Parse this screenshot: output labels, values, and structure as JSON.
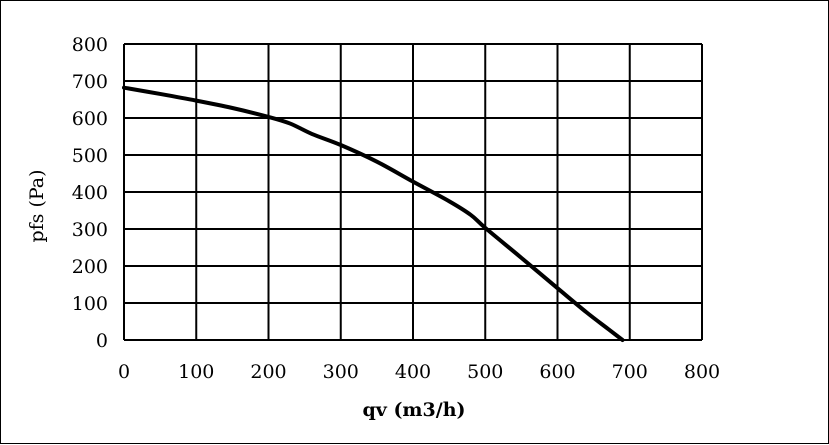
{
  "chart_data": {
    "type": "line",
    "title": "",
    "xlabel": "qv (m3/h)",
    "ylabel": "pfs (Pa)",
    "xlim": [
      0,
      800
    ],
    "ylim": [
      0,
      800
    ],
    "x_ticks": [
      0,
      100,
      200,
      300,
      400,
      500,
      600,
      700,
      800
    ],
    "y_ticks": [
      0,
      100,
      200,
      300,
      400,
      500,
      600,
      700,
      800
    ],
    "x_tick_labels": [
      "0",
      "100",
      "200",
      "300",
      "400",
      "500",
      "600",
      "700",
      "800"
    ],
    "y_tick_labels": [
      "0",
      "100",
      "200",
      "300",
      "400",
      "500",
      "600",
      "700",
      "800"
    ],
    "grid": true,
    "legend": "none",
    "series": [
      {
        "color": "#000000",
        "x": [
          0,
          50,
          100,
          150,
          200,
          230,
          260,
          300,
          350,
          400,
          450,
          480,
          500,
          550,
          600,
          640,
          670,
          690
        ],
        "y": [
          682,
          665,
          647,
          627,
          603,
          585,
          557,
          527,
          482,
          428,
          375,
          338,
          303,
          222,
          140,
          75,
          30,
          0
        ]
      }
    ]
  }
}
